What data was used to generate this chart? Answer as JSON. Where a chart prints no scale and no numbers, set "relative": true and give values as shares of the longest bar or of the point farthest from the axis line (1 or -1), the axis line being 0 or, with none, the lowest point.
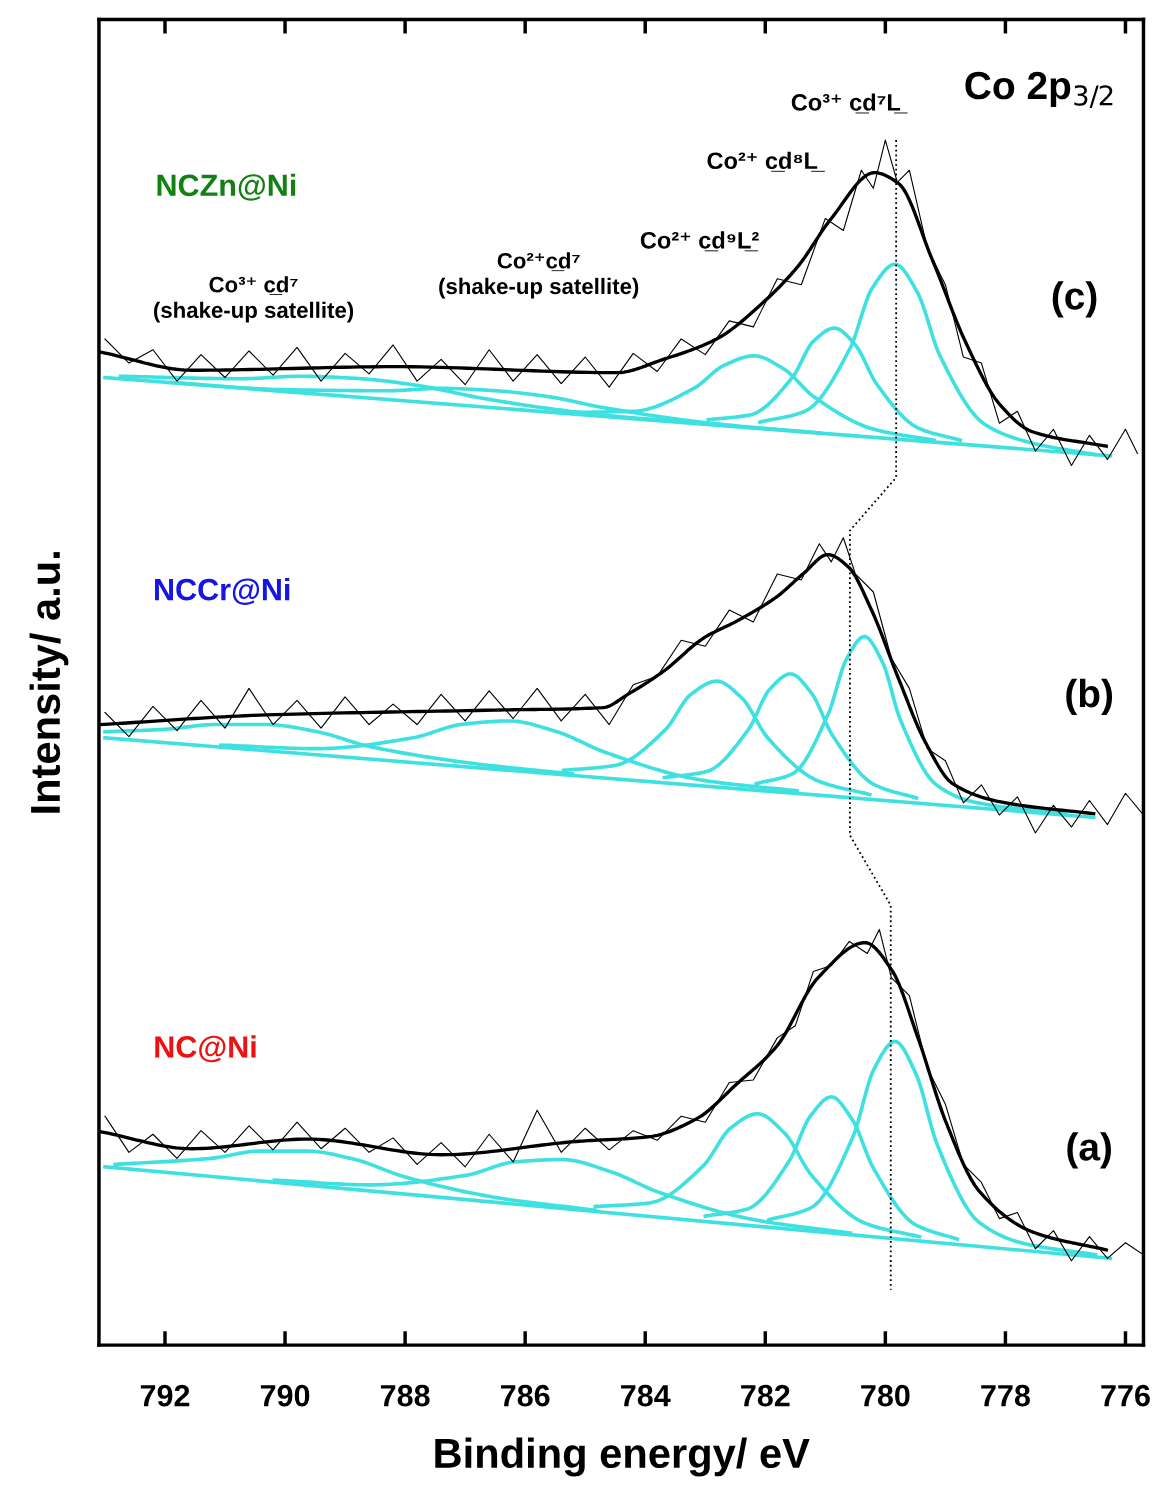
{
  "chart_data": {
    "type": "line",
    "relative": true,
    "xlabel": "Binding energy/ eV",
    "ylabel": "Intensity/ a.u.",
    "xlim": [
      793.1,
      775.7
    ],
    "xticks": [
      792,
      790,
      788,
      786,
      784,
      782,
      780,
      778,
      776
    ],
    "tick_labels": "x",
    "annotations": [
      "Co 2p$_{3/2}$",
      "NCZn@Ni",
      "NCCr@Ni",
      "NC@Ni",
      "(c)",
      "(b)",
      "(a)",
      "Co³⁺ c̲d⁷L̲",
      "Co²⁺ c̲d⁸L̲",
      "Co²⁺ c̲d⁹L̲²",
      "Co²⁺c̲d⁷\n(shake-up satellite)",
      "Co³⁺ c̲d⁷\n(shake-up satellite)"
    ],
    "series": [
      {
        "color": "#000000",
        "x": [
          793.0,
          792.6,
          792.2,
          791.8,
          791.4,
          791.0,
          790.6,
          790.2,
          789.8,
          789.4,
          789.0,
          788.6,
          788.2,
          787.8,
          787.4,
          787.0,
          786.6,
          786.2,
          785.8,
          785.4,
          785.0,
          784.6,
          784.2,
          783.8,
          783.4,
          783.0,
          782.6,
          782.2,
          781.8,
          781.4,
          781.0,
          780.7,
          780.4,
          780.2,
          780.0,
          779.8,
          779.6,
          779.3,
          779.0,
          778.7,
          778.4,
          778.1,
          777.8,
          777.5,
          777.2,
          776.9,
          776.6,
          776.3,
          776.0,
          775.8
        ],
        "values": [
          0.835,
          0.815,
          0.826,
          0.8,
          0.822,
          0.803,
          0.825,
          0.805,
          0.828,
          0.8,
          0.823,
          0.806,
          0.83,
          0.8,
          0.818,
          0.797,
          0.826,
          0.8,
          0.822,
          0.798,
          0.82,
          0.795,
          0.823,
          0.808,
          0.835,
          0.822,
          0.85,
          0.845,
          0.885,
          0.88,
          0.935,
          0.925,
          0.975,
          0.96,
          1.0,
          0.965,
          0.975,
          0.91,
          0.88,
          0.82,
          0.815,
          0.765,
          0.775,
          0.742,
          0.76,
          0.73,
          0.755,
          0.735,
          0.76,
          0.74
        ]
      },
      {
        "color": "#3ee0e0",
        "x": [
          793.0,
          776.25
        ],
        "values": [
          0.803,
          0.738
        ]
      },
      {
        "color": "#3ee0e0",
        "x": [
          792.74,
          790.74,
          789.74,
          788.74,
          787.74,
          786.74,
          784.74,
          782.74
        ],
        "values": [
          0.804,
          0.802,
          0.804,
          0.802,
          0.796,
          0.786,
          0.772,
          0.764
        ]
      },
      {
        "color": "#3ee0e0",
        "x": [
          791.9,
          790.1,
          788.3,
          787.4,
          786.5,
          785.6,
          784.7,
          782.9,
          781.1
        ],
        "values": [
          0.799,
          0.793,
          0.792,
          0.794,
          0.792,
          0.787,
          0.778,
          0.765,
          0.757
        ]
      },
      {
        "color": "#3ee0e0",
        "x": [
          785.19,
          784.19,
          783.19,
          782.69,
          782.19,
          781.69,
          781.19,
          780.19,
          779.19
        ],
        "values": [
          0.774,
          0.775,
          0.794,
          0.813,
          0.821,
          0.81,
          0.787,
          0.76,
          0.751
        ]
      },
      {
        "color": "#3ee0e0",
        "x": [
          782.95,
          782.25,
          781.55,
          781.2,
          780.85,
          780.5,
          780.15,
          779.45,
          778.75
        ],
        "values": [
          0.768,
          0.772,
          0.803,
          0.833,
          0.844,
          0.83,
          0.798,
          0.761,
          0.751
        ]
      },
      {
        "color": "#3ee0e0",
        "x": [
          782.09,
          781.34,
          780.59,
          780.22,
          779.84,
          779.47,
          779.09,
          778.34,
          777.59,
          776.5
        ],
        "values": [
          0.766,
          0.775,
          0.827,
          0.877,
          0.897,
          0.874,
          0.821,
          0.764,
          0.749,
          0.739
        ]
      },
      {
        "color": "#000000",
        "x": [
          793.06,
          791.55,
          788.19,
          784.48,
          783.7,
          782.81,
          782.02,
          781.46,
          780.9,
          780.18,
          779.78,
          779.22,
          778.66,
          778.1,
          777.55,
          776.32
        ],
        "values": [
          0.824,
          0.809,
          0.812,
          0.807,
          0.818,
          0.835,
          0.866,
          0.895,
          0.935,
          0.973,
          0.964,
          0.901,
          0.832,
          0.781,
          0.758,
          0.746
        ]
      },
      {
        "color": "#000000",
        "x": [
          793.0,
          792.6,
          792.2,
          791.8,
          791.4,
          791.0,
          790.6,
          790.2,
          789.8,
          789.4,
          789.0,
          788.6,
          788.2,
          787.8,
          787.4,
          787.0,
          786.6,
          786.2,
          785.8,
          785.4,
          785.0,
          784.6,
          784.2,
          783.8,
          783.4,
          783.0,
          782.6,
          782.2,
          781.8,
          781.4,
          781.1,
          780.9,
          780.7,
          780.5,
          780.2,
          779.9,
          779.6,
          779.3,
          779.0,
          778.7,
          778.4,
          778.1,
          777.8,
          777.5,
          777.2,
          776.9,
          776.6,
          776.3,
          776.0,
          775.7
        ],
        "values": [
          0.525,
          0.505,
          0.53,
          0.51,
          0.535,
          0.512,
          0.545,
          0.515,
          0.535,
          0.512,
          0.538,
          0.515,
          0.532,
          0.515,
          0.54,
          0.518,
          0.543,
          0.52,
          0.545,
          0.518,
          0.54,
          0.515,
          0.548,
          0.555,
          0.585,
          0.58,
          0.61,
          0.6,
          0.64,
          0.635,
          0.665,
          0.65,
          0.67,
          0.64,
          0.625,
          0.57,
          0.545,
          0.495,
          0.485,
          0.45,
          0.465,
          0.44,
          0.455,
          0.425,
          0.448,
          0.43,
          0.452,
          0.432,
          0.458,
          0.44
        ]
      },
      {
        "color": "#3ee0e0",
        "x": [
          793.0,
          776.53
        ],
        "values": [
          0.504,
          0.438
        ]
      },
      {
        "color": "#3ee0e0",
        "x": [
          793.0,
          792.01,
          791.16,
          790.31,
          789.46,
          788.61,
          786.91,
          785.21
        ],
        "values": [
          0.509,
          0.511,
          0.515,
          0.515,
          0.509,
          0.497,
          0.483,
          0.474
        ]
      },
      {
        "color": "#3ee0e0",
        "x": [
          791.07,
          789.47,
          787.87,
          787.07,
          786.27,
          785.47,
          784.67,
          783.07,
          781.47
        ],
        "values": [
          0.498,
          0.495,
          0.504,
          0.515,
          0.518,
          0.509,
          0.492,
          0.469,
          0.46
        ]
      },
      {
        "color": "#3ee0e0",
        "x": [
          785.36,
          784.51,
          783.66,
          783.24,
          782.81,
          782.39,
          781.96,
          781.11,
          780.26
        ],
        "values": [
          0.477,
          0.481,
          0.511,
          0.54,
          0.551,
          0.537,
          0.504,
          0.468,
          0.457
        ]
      },
      {
        "color": "#3ee0e0",
        "x": [
          783.68,
          782.98,
          782.28,
          781.93,
          781.58,
          781.23,
          780.88,
          780.18,
          779.48
        ],
        "values": [
          0.471,
          0.476,
          0.511,
          0.544,
          0.557,
          0.541,
          0.506,
          0.465,
          0.454
        ]
      },
      {
        "color": "#3ee0e0",
        "x": [
          782.15,
          781.55,
          780.95,
          780.65,
          780.35,
          780.05,
          779.75,
          779.15,
          778.55,
          777.0
        ],
        "values": [
          0.466,
          0.474,
          0.524,
          0.569,
          0.588,
          0.567,
          0.519,
          0.465,
          0.451,
          0.441
        ]
      },
      {
        "color": "#000000",
        "x": [
          793.06,
          790.31,
          786.5,
          784.71,
          784.26,
          783.7,
          783.02,
          782.47,
          781.81,
          781.35,
          780.96,
          780.62,
          780.23,
          779.78,
          779.34,
          778.88,
          778.1,
          776.53
        ],
        "values": [
          0.515,
          0.523,
          0.527,
          0.529,
          0.541,
          0.559,
          0.587,
          0.601,
          0.621,
          0.641,
          0.656,
          0.646,
          0.61,
          0.553,
          0.501,
          0.466,
          0.451,
          0.441
        ]
      },
      {
        "color": "#000000",
        "x": [
          793.0,
          792.6,
          792.2,
          791.8,
          791.4,
          791.0,
          790.6,
          790.2,
          789.8,
          789.4,
          789.0,
          788.6,
          788.2,
          787.8,
          787.4,
          787.0,
          786.6,
          786.2,
          785.8,
          785.4,
          785.0,
          784.6,
          784.2,
          783.8,
          783.4,
          783.0,
          782.6,
          782.2,
          781.8,
          781.5,
          781.2,
          780.9,
          780.6,
          780.3,
          780.1,
          779.9,
          779.6,
          779.3,
          779.0,
          778.7,
          778.4,
          778.1,
          777.8,
          777.5,
          777.2,
          776.9,
          776.6,
          776.3,
          776.0,
          775.7
        ],
        "values": [
          0.19,
          0.16,
          0.175,
          0.155,
          0.178,
          0.16,
          0.182,
          0.162,
          0.185,
          0.163,
          0.18,
          0.16,
          0.172,
          0.15,
          0.168,
          0.148,
          0.175,
          0.152,
          0.195,
          0.16,
          0.18,
          0.162,
          0.178,
          0.17,
          0.19,
          0.185,
          0.218,
          0.22,
          0.255,
          0.265,
          0.31,
          0.315,
          0.335,
          0.325,
          0.345,
          0.305,
          0.29,
          0.23,
          0.2,
          0.15,
          0.135,
          0.105,
          0.11,
          0.08,
          0.095,
          0.07,
          0.09,
          0.072,
          0.085,
          0.075
        ]
      },
      {
        "color": "#3ee0e0",
        "x": [
          793.0,
          776.25
        ],
        "values": [
          0.148,
          0.072
        ]
      },
      {
        "color": "#3ee0e0",
        "x": [
          792.83,
          791.23,
          790.43,
          789.63,
          788.83,
          788.03,
          786.43,
          784.83
        ],
        "values": [
          0.15,
          0.155,
          0.161,
          0.161,
          0.154,
          0.14,
          0.122,
          0.112
        ]
      },
      {
        "color": "#3ee0e0",
        "x": [
          790.18,
          788.58,
          786.98,
          786.18,
          785.38,
          784.58,
          783.78,
          782.18,
          780.58
        ],
        "values": [
          0.137,
          0.133,
          0.141,
          0.152,
          0.154,
          0.144,
          0.127,
          0.104,
          0.093
        ]
      },
      {
        "color": "#3ee0e0",
        "x": [
          784.83,
          783.93,
          783.03,
          782.58,
          782.13,
          781.68,
          781.23,
          780.33,
          779.43
        ],
        "values": [
          0.115,
          0.118,
          0.149,
          0.18,
          0.192,
          0.176,
          0.141,
          0.101,
          0.09
        ]
      },
      {
        "color": "#3ee0e0",
        "x": [
          783.0,
          782.3,
          781.6,
          781.25,
          780.9,
          780.55,
          780.2,
          779.5,
          778.8
        ],
        "values": [
          0.107,
          0.113,
          0.153,
          0.19,
          0.206,
          0.187,
          0.147,
          0.1,
          0.088
        ]
      },
      {
        "color": "#3ee0e0",
        "x": [
          781.94,
          781.24,
          780.54,
          780.19,
          779.84,
          779.49,
          779.14,
          778.44,
          777.74,
          776.5
        ],
        "values": [
          0.104,
          0.114,
          0.173,
          0.229,
          0.252,
          0.225,
          0.167,
          0.102,
          0.085,
          0.075
        ]
      },
      {
        "color": "#000000",
        "x": [
          793.06,
          791.55,
          789.63,
          787.39,
          785.15,
          783.93,
          783.14,
          782.47,
          781.81,
          781.12,
          780.34,
          779.89,
          779.45,
          778.99,
          778.44,
          777.55,
          776.32
        ],
        "values": [
          0.177,
          0.163,
          0.171,
          0.158,
          0.169,
          0.173,
          0.188,
          0.217,
          0.248,
          0.305,
          0.334,
          0.311,
          0.254,
          0.185,
          0.128,
          0.094,
          0.079
        ]
      },
      {
        "color": "#000000",
        "line_style": "dotted",
        "x": [
          779.82,
          779.82,
          780.59,
          780.59,
          779.91,
          779.91
        ],
        "values": [
          1.0,
          0.72,
          0.676,
          0.423,
          0.365,
          0.046
        ]
      }
    ]
  }
}
